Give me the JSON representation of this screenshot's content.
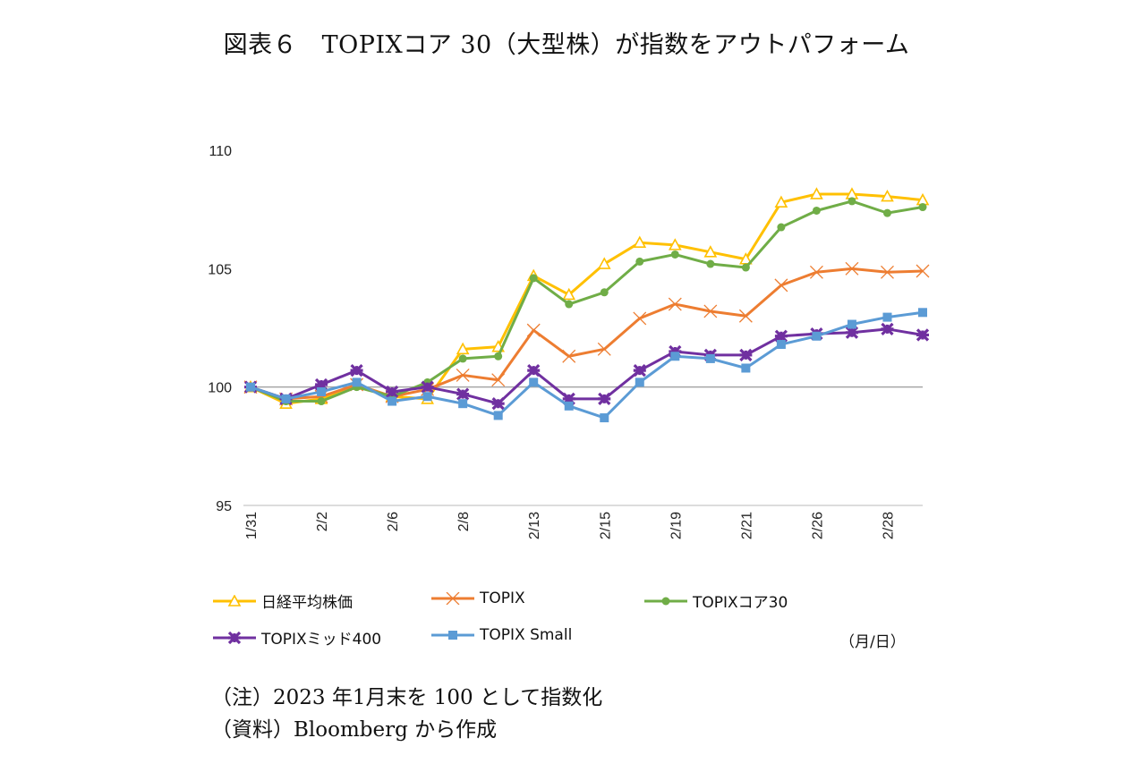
{
  "title": "図表６　TOPIXコア 30（大型株）が指数をアウトパフォーム",
  "unit_label": "（月/日）",
  "notes": [
    "（注）2023 年1月末を 100 として指数化",
    "（資料）Bloomberg から作成"
  ],
  "chart_data": {
    "type": "line",
    "title": "図表６　TOPIXコア 30（大型株）が指数をアウトパフォーム",
    "xlabel": "（月/日）",
    "ylabel": "",
    "ylim": [
      95,
      110
    ],
    "yticks": [
      95,
      100,
      105,
      110
    ],
    "reference_line": 100,
    "grid": false,
    "legend_position": "bottom",
    "x_tick_labels": [
      "1/31",
      "",
      "2/2",
      "",
      "2/6",
      "",
      "2/8",
      "",
      "2/13",
      "",
      "2/15",
      "",
      "2/19",
      "",
      "2/21",
      "",
      "2/26",
      "",
      "2/28",
      ""
    ],
    "series": [
      {
        "name": "日経平均株価",
        "color": "#FFC000",
        "marker": "triangle-open",
        "values": [
          100,
          99.3,
          99.5,
          100.1,
          99.6,
          99.5,
          101.6,
          101.7,
          104.7,
          103.9,
          105.2,
          106.1,
          106.0,
          105.7,
          105.4,
          107.8,
          108.15,
          108.15,
          108.05,
          107.9
        ]
      },
      {
        "name": "TOPIX",
        "color": "#ED7D31",
        "marker": "x",
        "values": [
          100,
          99.5,
          99.6,
          100.1,
          99.6,
          99.9,
          100.5,
          100.3,
          102.4,
          101.3,
          101.6,
          102.9,
          103.5,
          103.2,
          103.0,
          104.3,
          104.85,
          105.0,
          104.85,
          104.9
        ]
      },
      {
        "name": "TOPIXコア30",
        "color": "#70AD47",
        "marker": "circle",
        "values": [
          100,
          99.4,
          99.4,
          100.0,
          99.6,
          100.2,
          101.2,
          101.3,
          104.6,
          103.5,
          104.0,
          105.3,
          105.6,
          105.2,
          105.05,
          106.75,
          107.45,
          107.85,
          107.35,
          107.6
        ]
      },
      {
        "name": "TOPIXミッド400",
        "color": "#7030A0",
        "marker": "star",
        "values": [
          100,
          99.5,
          100.1,
          100.7,
          99.8,
          100.0,
          99.7,
          99.3,
          100.7,
          99.5,
          99.5,
          100.7,
          101.5,
          101.35,
          101.35,
          102.15,
          102.25,
          102.3,
          102.45,
          102.2
        ]
      },
      {
        "name": "TOPIX Small",
        "color": "#5B9BD5",
        "marker": "square",
        "values": [
          100,
          99.5,
          99.8,
          100.2,
          99.4,
          99.6,
          99.3,
          98.8,
          100.2,
          99.2,
          98.7,
          100.2,
          101.3,
          101.2,
          100.8,
          101.8,
          102.15,
          102.65,
          102.95,
          103.15
        ]
      }
    ]
  }
}
